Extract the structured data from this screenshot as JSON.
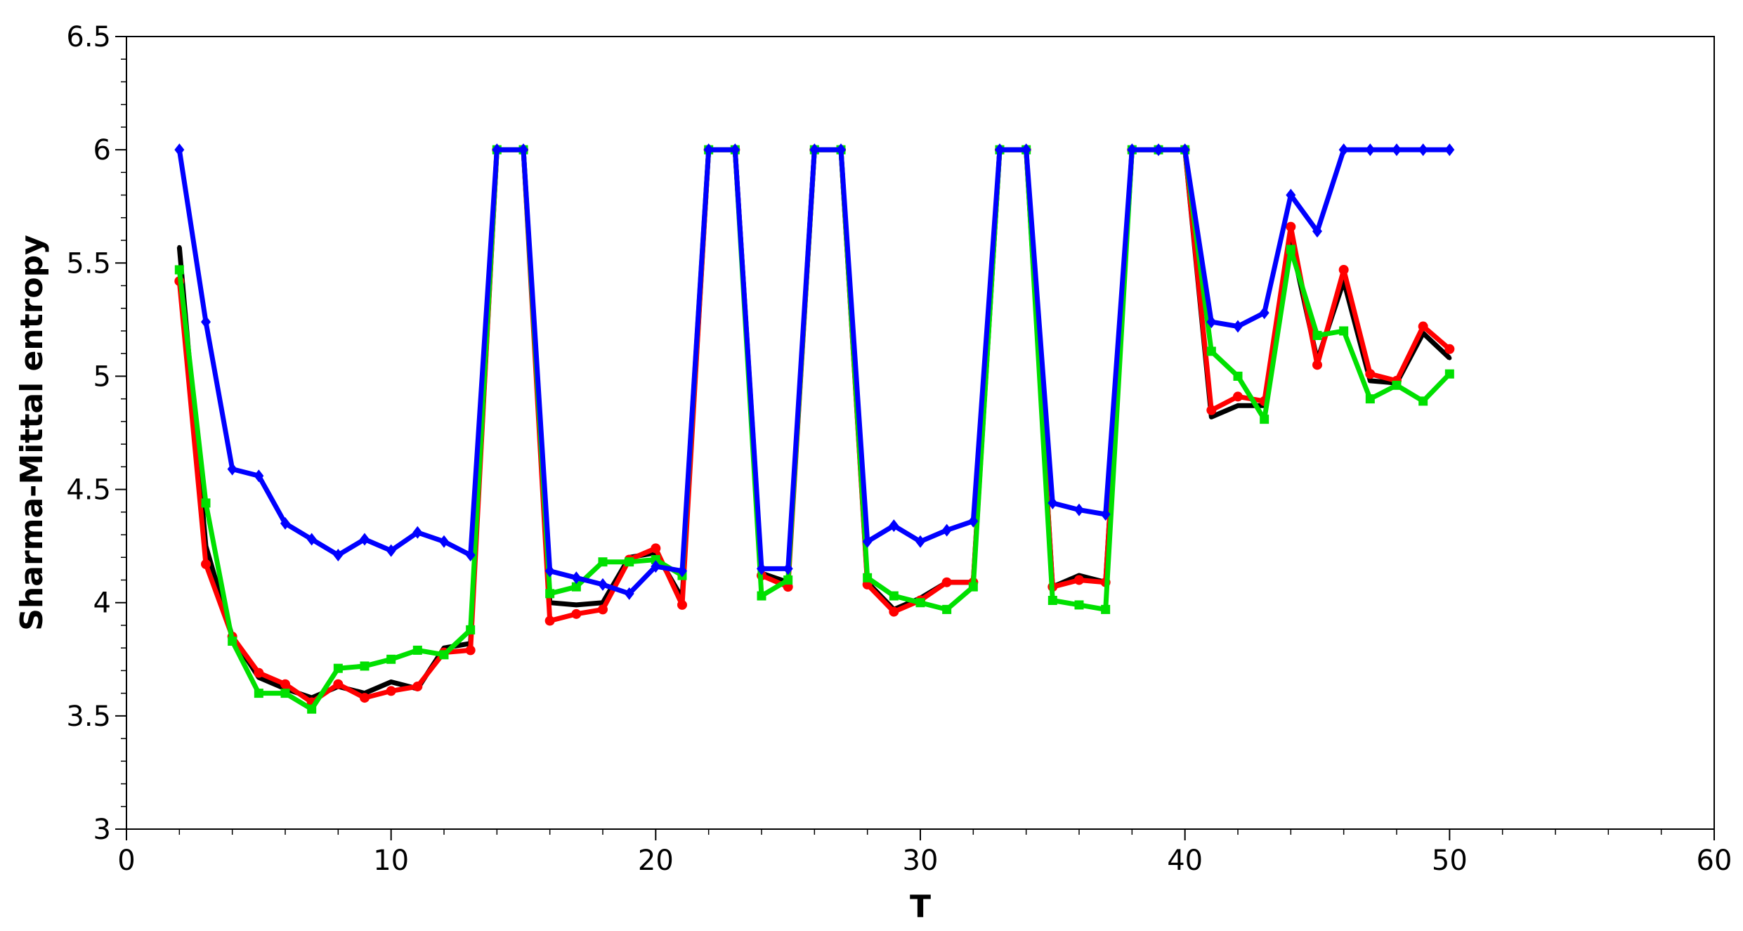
{
  "chart_data": {
    "type": "line",
    "title": "",
    "xlabel": "T",
    "ylabel": "Sharma-Mittal entropy",
    "xlim": [
      0,
      60
    ],
    "ylim": [
      3,
      6.5
    ],
    "x_ticks": [
      0,
      10,
      20,
      30,
      40,
      50,
      60
    ],
    "x_tick_labels": [
      "0",
      "10",
      "20",
      "30",
      "40",
      "50",
      "60"
    ],
    "y_ticks": [
      3,
      3.5,
      4,
      4.5,
      5,
      5.5,
      6,
      6.5
    ],
    "y_tick_labels": [
      "3",
      "3.5",
      "4",
      "4.5",
      "5",
      "5.5",
      "6",
      "6.5"
    ],
    "grid": false,
    "legend": "none",
    "x": [
      2,
      3,
      4,
      5,
      6,
      7,
      8,
      9,
      10,
      11,
      12,
      13,
      14,
      15,
      16,
      17,
      18,
      19,
      20,
      21,
      22,
      23,
      24,
      25,
      26,
      27,
      28,
      29,
      30,
      31,
      32,
      33,
      34,
      35,
      36,
      37,
      38,
      39,
      40,
      41,
      42,
      43,
      44,
      45,
      46,
      47,
      48,
      49,
      50
    ],
    "series": [
      {
        "color": "#000000",
        "marker": "none",
        "values": [
          5.57,
          4.25,
          3.85,
          3.67,
          3.62,
          3.58,
          3.63,
          3.6,
          3.65,
          3.62,
          3.8,
          3.82,
          6,
          6,
          4,
          3.99,
          4,
          4.2,
          4.22,
          4.02,
          6,
          6,
          4.13,
          4.09,
          6,
          6,
          4.09,
          3.97,
          4.02,
          4.09,
          4.09,
          6,
          6,
          4.07,
          4.12,
          4.09,
          6,
          6,
          6,
          4.82,
          4.87,
          4.87,
          5.6,
          5.07,
          5.42,
          4.98,
          4.97,
          5.19,
          5.08
        ]
      },
      {
        "color": "#ff0000",
        "marker": "circle",
        "values": [
          5.42,
          4.17,
          3.85,
          3.69,
          3.64,
          3.56,
          3.64,
          3.58,
          3.61,
          3.63,
          3.78,
          3.79,
          6,
          6,
          3.92,
          3.95,
          3.97,
          4.19,
          4.24,
          3.99,
          6,
          6,
          4.12,
          4.07,
          6,
          6,
          4.08,
          3.96,
          4.01,
          4.09,
          4.09,
          6,
          6,
          4.07,
          4.1,
          4.09,
          6,
          6,
          6,
          4.85,
          4.91,
          4.89,
          5.66,
          5.05,
          5.47,
          5.01,
          4.98,
          5.22,
          5.12
        ]
      },
      {
        "color": "#00e000",
        "marker": "square",
        "values": [
          5.47,
          4.44,
          3.83,
          3.6,
          3.6,
          3.53,
          3.71,
          3.72,
          3.75,
          3.79,
          3.77,
          3.88,
          6,
          6,
          4.04,
          4.07,
          4.18,
          4.18,
          4.19,
          4.12,
          6,
          6,
          4.03,
          4.1,
          6,
          6,
          4.11,
          4.03,
          4,
          3.97,
          4.07,
          6,
          6,
          4.01,
          3.99,
          3.97,
          6,
          6,
          6,
          5.11,
          5.0,
          4.81,
          5.56,
          5.18,
          5.2,
          4.9,
          4.96,
          4.89,
          5.01
        ]
      },
      {
        "color": "#0000ff",
        "marker": "diamond",
        "values": [
          6,
          5.24,
          4.59,
          4.56,
          4.35,
          4.28,
          4.21,
          4.28,
          4.23,
          4.31,
          4.27,
          4.21,
          6,
          6,
          4.14,
          4.11,
          4.08,
          4.04,
          4.16,
          4.14,
          6,
          6,
          4.15,
          4.15,
          6,
          6,
          4.27,
          4.34,
          4.27,
          4.32,
          4.36,
          6,
          6,
          4.44,
          4.41,
          4.39,
          6,
          6,
          6,
          5.24,
          5.22,
          5.28,
          5.8,
          5.64,
          6,
          6,
          6,
          6,
          6
        ]
      }
    ]
  }
}
